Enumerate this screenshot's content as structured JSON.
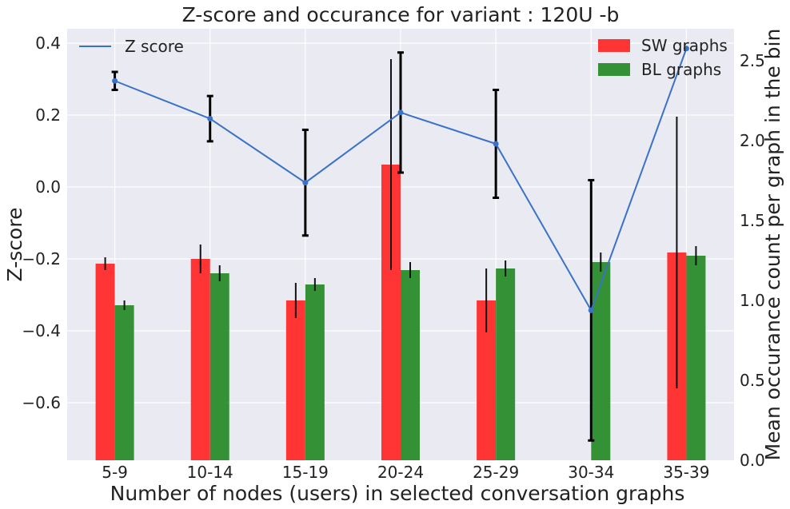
{
  "chart_data": {
    "type": "bar+line",
    "title": "Z-score and occurance for variant : 120U -b",
    "xlabel": "Number of nodes (users) in selected conversation graphs",
    "ylabel_left": "Z-score",
    "ylabel_right": "Mean occurance count per graph in the bin",
    "categories": [
      "5-9",
      "10-14",
      "15-19",
      "20-24",
      "25-29",
      "30-34",
      "35-39"
    ],
    "ylim_left": [
      -0.76,
      0.44
    ],
    "ylim_right": [
      0.0,
      2.7
    ],
    "yticks_left": [
      0.4,
      0.2,
      0.0,
      -0.2,
      -0.4,
      -0.6
    ],
    "yticks_left_labels": [
      "0.4",
      "0.2",
      "0.0",
      "−0.2",
      "−0.4",
      "−0.6"
    ],
    "yticks_right": [
      2.5,
      2.0,
      1.5,
      1.0,
      0.5,
      0.0
    ],
    "yticks_right_labels": [
      "2.5",
      "2.0",
      "1.5",
      "1.0",
      "0.5",
      "0.0"
    ],
    "grid": true,
    "background": "#eaeaf2",
    "bar_series": [
      {
        "name": "SW graphs",
        "color": "#ff2a2a",
        "values": [
          1.23,
          1.26,
          1.0,
          1.85,
          1.0,
          0.0,
          1.3
        ],
        "errors": [
          0.04,
          0.09,
          0.11,
          0.66,
          0.2,
          0.0,
          0.85
        ]
      },
      {
        "name": "BL graphs",
        "color": "#2a8c2a",
        "values": [
          0.97,
          1.17,
          1.1,
          1.19,
          1.2,
          1.24,
          1.28
        ],
        "errors": [
          0.03,
          0.05,
          0.04,
          0.05,
          0.05,
          0.06,
          0.06
        ]
      }
    ],
    "line_series": {
      "name": "Z score",
      "color": "#3a72c8",
      "values": [
        0.295,
        0.19,
        0.012,
        0.207,
        0.12,
        -0.343,
        0.385
      ],
      "errors": [
        0.025,
        0.063,
        0.147,
        0.167,
        0.15,
        0.362,
        0.0
      ]
    },
    "legend_left": {
      "position": "top-left",
      "label": "Z score"
    },
    "legend_right": {
      "position": "top-right",
      "labels": [
        "SW graphs",
        "BL graphs"
      ]
    }
  }
}
